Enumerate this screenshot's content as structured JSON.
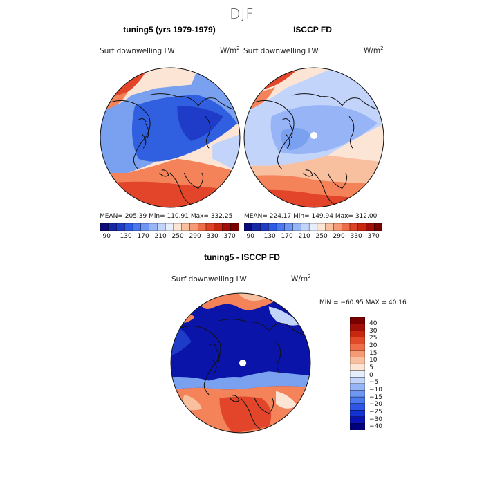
{
  "figure": {
    "season": "DJF",
    "top_panels": [
      {
        "title": "tuning5 (yrs 1979-1979)",
        "variable": "Surf downwelling LW",
        "units_base": "W/m",
        "units_exp": "2",
        "stats": "MEAN= 205.39   Min= 110.91   Max= 332.25"
      },
      {
        "title": "ISCCP FD",
        "variable": "Surf downwelling LW",
        "units_base": "W/m",
        "units_exp": "2",
        "stats": "MEAN= 224.17   Min= 149.94   Max= 312.00"
      }
    ],
    "diff_panel": {
      "title": "tuning5 - ISCCP FD",
      "variable": "Surf downwelling LW",
      "units_base": "W/m",
      "units_exp": "2",
      "stats": "MIN = −60.95  MAX =  40.16"
    }
  },
  "colorbars": {
    "absolute": {
      "colors": [
        "#0a0a78",
        "#1428a8",
        "#1e3cc8",
        "#2d5ae6",
        "#4b78ee",
        "#6e96f2",
        "#96b4f6",
        "#c3d4fa",
        "#e6eefc",
        "#fde5d5",
        "#f9c0a0",
        "#f59a76",
        "#ee6e4a",
        "#dc4428",
        "#c8280f",
        "#a01008",
        "#7a0000"
      ],
      "labels": [
        "90",
        "130",
        "170",
        "210",
        "250",
        "290",
        "330",
        "370"
      ]
    },
    "difference": {
      "colors": [
        "#00007a",
        "#0a14b4",
        "#1432d2",
        "#2d55e6",
        "#4b78ee",
        "#6e96f2",
        "#96b4f6",
        "#c3d4fa",
        "#e6eefc",
        "#fde5d5",
        "#f9c0a0",
        "#f59a76",
        "#ee6e4a",
        "#e04a28",
        "#c8280f",
        "#a01008",
        "#7a0000"
      ],
      "labels": [
        "40",
        "30",
        "25",
        "20",
        "15",
        "10",
        "5",
        "0",
        "−5",
        "−10",
        "−15",
        "−20",
        "−25",
        "−30",
        "−40"
      ]
    }
  },
  "map_colors": {
    "warm_deep": "#e2452a",
    "warm_mid": "#f4835a",
    "warm_light": "#f9c0a0",
    "neutral": "#fde5d5",
    "cool_light": "#c3d4fa",
    "cool_mid": "#7aa0f0",
    "cool_deep": "#3060e0",
    "cool_darker": "#1e3cc8",
    "navy": "#0a14a8",
    "coast": "#111111",
    "pole_mask": "#ffffff"
  }
}
